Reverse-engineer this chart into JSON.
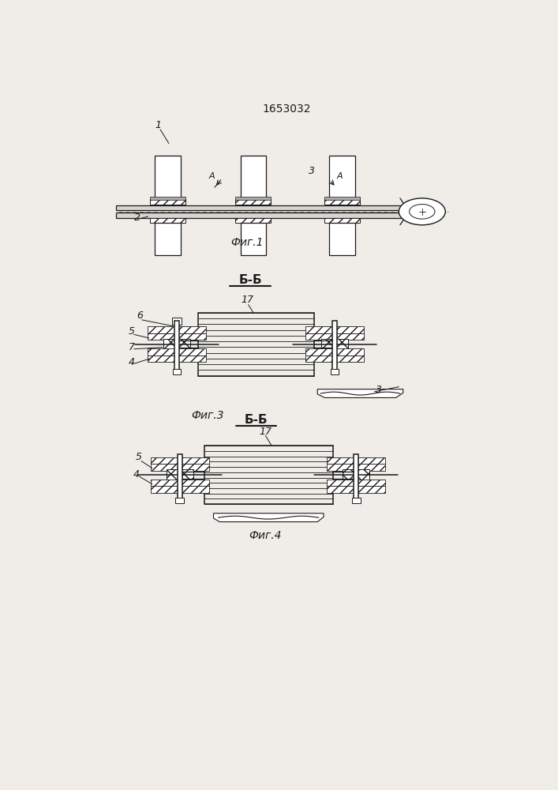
{
  "title": "1653032",
  "bg_color": "#f0ede8",
  "line_color": "#1a1a1a",
  "fig1_label": "Фиг.1",
  "fig3_label": "Фиг.3",
  "fig4_label": "Фиг.4",
  "bb_label": "Б-Б",
  "bb2_label": "Б-Б"
}
